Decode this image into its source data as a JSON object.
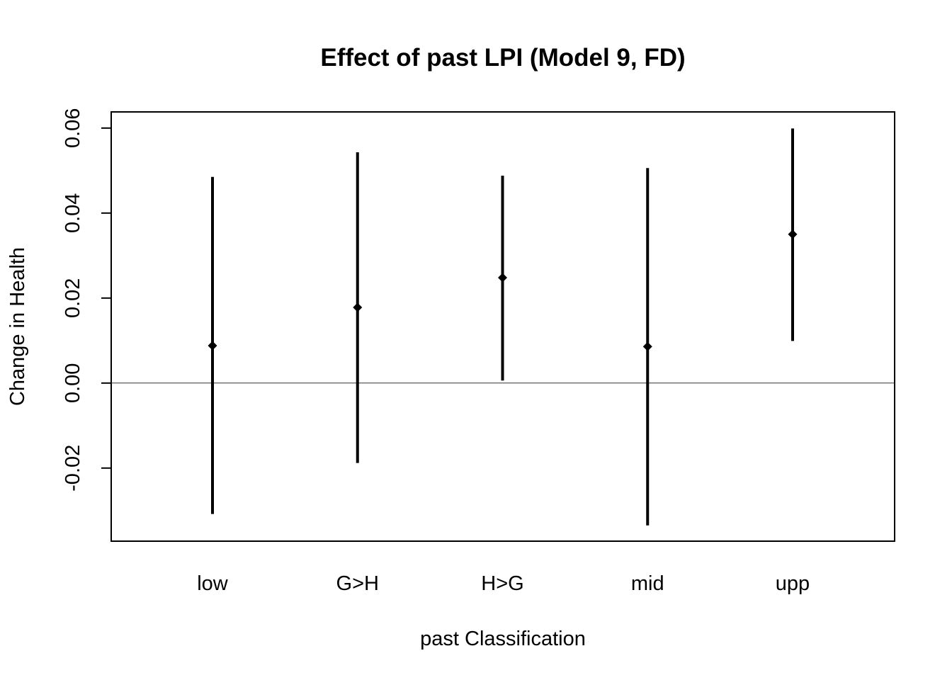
{
  "chart_data": {
    "type": "errorbar",
    "title": "Effect of past LPI (Model 9, FD)",
    "xlabel": "past Classification",
    "ylabel": "Change in Health",
    "categories": [
      "low",
      "G>H",
      "H>G",
      "mid",
      "upp"
    ],
    "estimates": [
      0.0088,
      0.0178,
      0.0248,
      0.0086,
      0.035
    ],
    "lower": [
      -0.0308,
      -0.0188,
      0.0006,
      -0.0335,
      0.0099
    ],
    "upper": [
      0.0485,
      0.0543,
      0.0488,
      0.0506,
      0.0599
    ],
    "ylim": [
      -0.0372,
      0.0638
    ],
    "yticks": [
      -0.02,
      0.0,
      0.02,
      0.04,
      0.06
    ],
    "ytick_labels": [
      "-0.02",
      "0.00",
      "0.02",
      "0.04",
      "0.06"
    ],
    "reference_line": 0.0,
    "grid": false,
    "legend": "none",
    "colors": {
      "marks": "#000000",
      "reference_line": "#333333",
      "frame": "#000000"
    }
  }
}
